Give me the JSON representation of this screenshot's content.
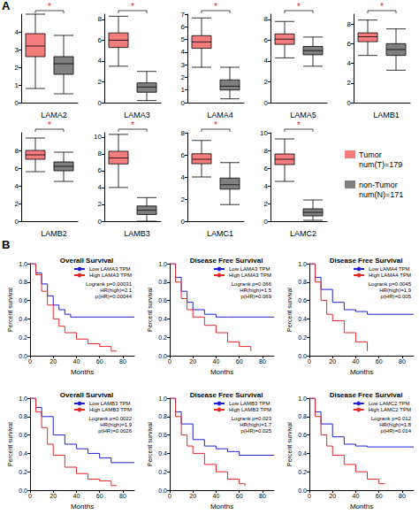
{
  "panel_labels": [
    "A",
    "B"
  ],
  "legend_notes": [
    "num(T)=179",
    "num(N)=171"
  ],
  "chart_data": [
    {
      "type": "boxplot",
      "title": "LAMA2",
      "annotation": "*",
      "categories": [
        "Tumor",
        "non-Tumor"
      ],
      "colors": [
        "#f47c7c",
        "#808080"
      ],
      "tick_labels": "y",
      "grid": false,
      "values": [
        [
          0.8,
          2.6,
          3.2,
          3.9,
          5.0
        ],
        [
          0.5,
          1.6,
          2.2,
          2.6,
          3.8
        ]
      ],
      "ylim": [
        0,
        5
      ],
      "yticks": [
        0,
        1,
        2,
        3,
        4
      ]
    },
    {
      "type": "boxplot",
      "title": "LAMA3",
      "annotation": "*",
      "categories": [
        "Tumor",
        "non-Tumor"
      ],
      "colors": [
        "#f47c7c",
        "#808080"
      ],
      "tick_labels": "y",
      "grid": false,
      "values": [
        [
          3.5,
          5.3,
          6.0,
          6.7,
          8.3
        ],
        [
          0.2,
          1.0,
          1.5,
          1.9,
          3.0
        ]
      ],
      "ylim": [
        0,
        8.5
      ],
      "yticks": [
        0,
        2,
        4,
        6,
        8
      ]
    },
    {
      "type": "boxplot",
      "title": "LAMA4",
      "annotation": "*",
      "categories": [
        "Tumor",
        "non-Tumor"
      ],
      "colors": [
        "#f47c7c",
        "#808080"
      ],
      "tick_labels": "y",
      "grid": false,
      "values": [
        [
          2.8,
          4.3,
          4.8,
          5.3,
          6.7
        ],
        [
          0.3,
          1.0,
          1.3,
          1.8,
          2.8
        ]
      ],
      "ylim": [
        0,
        7
      ],
      "yticks": [
        0,
        1,
        2,
        3,
        4,
        5,
        6,
        7
      ]
    },
    {
      "type": "boxplot",
      "title": "LAMA5",
      "annotation": "*",
      "categories": [
        "Tumor",
        "non-Tumor"
      ],
      "colors": [
        "#f47c7c",
        "#808080"
      ],
      "tick_labels": "y",
      "grid": false,
      "values": [
        [
          4.3,
          5.6,
          6.1,
          6.6,
          7.8
        ],
        [
          3.5,
          4.6,
          5.0,
          5.4,
          6.3
        ]
      ],
      "ylim": [
        0,
        8.5
      ],
      "yticks": [
        0,
        2,
        4,
        6,
        8
      ]
    },
    {
      "type": "boxplot",
      "title": "LAMB1",
      "annotation": "*",
      "categories": [
        "Tumor",
        "non-Tumor"
      ],
      "colors": [
        "#f47c7c",
        "#808080"
      ],
      "tick_labels": "y",
      "grid": false,
      "values": [
        [
          4.8,
          6.2,
          6.7,
          7.1,
          8.4
        ],
        [
          3.3,
          4.8,
          5.4,
          6.0,
          7.5
        ]
      ],
      "ylim": [
        0,
        9
      ],
      "yticks": [
        0,
        2,
        4,
        6,
        8
      ]
    },
    {
      "type": "boxplot",
      "title": "LAMB2",
      "annotation": "*",
      "categories": [
        "Tumor",
        "non-Tumor"
      ],
      "colors": [
        "#f47c7c",
        "#808080"
      ],
      "tick_labels": "y",
      "grid": false,
      "values": [
        [
          5.6,
          7.0,
          7.5,
          8.0,
          9.4
        ],
        [
          4.5,
          5.7,
          6.2,
          6.7,
          7.8
        ]
      ],
      "ylim": [
        0,
        10
      ],
      "yticks": [
        0,
        2,
        4,
        6,
        8
      ]
    },
    {
      "type": "boxplot",
      "title": "LAMB3",
      "annotation": "*",
      "categories": [
        "Tumor",
        "non-Tumor"
      ],
      "colors": [
        "#f47c7c",
        "#808080"
      ],
      "tick_labels": "y",
      "grid": false,
      "values": [
        [
          4.0,
          6.8,
          7.5,
          8.3,
          10.3
        ],
        [
          0,
          0.8,
          1.3,
          1.8,
          2.8
        ]
      ],
      "ylim": [
        0,
        10.5
      ],
      "yticks": [
        0,
        2,
        4,
        6,
        8,
        10
      ]
    },
    {
      "type": "boxplot",
      "title": "LAMC1",
      "annotation": "*",
      "categories": [
        "Tumor",
        "non-Tumor"
      ],
      "colors": [
        "#f47c7c",
        "#808080"
      ],
      "tick_labels": "y",
      "grid": false,
      "values": [
        [
          4.0,
          5.2,
          5.6,
          6.1,
          7.3
        ],
        [
          1.5,
          2.9,
          3.3,
          3.9,
          5.3
        ]
      ],
      "ylim": [
        0,
        8
      ],
      "yticks": [
        0,
        2,
        4,
        6,
        8
      ]
    },
    {
      "type": "boxplot",
      "title": "LAMC2",
      "annotation": "*",
      "categories": [
        "Tumor",
        "non-Tumor"
      ],
      "colors": [
        "#f47c7c",
        "#808080"
      ],
      "tick_labels": "y",
      "grid": false,
      "values": [
        [
          4.5,
          6.4,
          7.0,
          7.6,
          9.3
        ],
        [
          0.1,
          0.6,
          1.0,
          1.4,
          2.4
        ]
      ],
      "ylim": [
        0,
        10
      ],
      "yticks": [
        0,
        2,
        4,
        6,
        8,
        10
      ]
    },
    {
      "type": "step",
      "title": "Overall Survival",
      "xlabel": "Months",
      "ylabel": "Percent survival",
      "legend": "upper right",
      "grid": false,
      "xlim": [
        0,
        90
      ],
      "xticks": [
        0,
        20,
        40,
        60,
        80
      ],
      "ylim": [
        0,
        1
      ],
      "yticks": [
        {
          "value": 0,
          "label": "0.0"
        },
        {
          "value": 0.2,
          "label": "0.2"
        },
        {
          "value": 0.4,
          "label": "0.4"
        },
        {
          "value": 0.6,
          "label": "0.6"
        },
        {
          "value": 0.8,
          "label": "0.8"
        },
        {
          "value": 1,
          "label": "1.0"
        }
      ],
      "annotations": [
        "Logrank p=0.00031",
        "HR(high)=2.1",
        "p(HR)=0.00044"
      ],
      "series": [
        {
          "name": "Low LAMA3 TPM",
          "color": "#1f1fd6",
          "x": [
            0,
            5,
            10,
            15,
            20,
            25,
            30,
            35,
            45,
            90
          ],
          "values": [
            1,
            0.9,
            0.78,
            0.65,
            0.55,
            0.5,
            0.45,
            0.42,
            0.42,
            0.42
          ]
        },
        {
          "name": "High LAMA3 TPM",
          "color": "#e8262a",
          "x": [
            0,
            5,
            10,
            15,
            20,
            25,
            30,
            40,
            50,
            60,
            70,
            75
          ],
          "values": [
            1,
            0.88,
            0.7,
            0.55,
            0.4,
            0.32,
            0.25,
            0.18,
            0.13,
            0.1,
            0.05,
            0.05
          ]
        }
      ]
    },
    {
      "type": "step",
      "title": "Disease Free Survival",
      "xlabel": "Months",
      "ylabel": "Percent survival",
      "legend": "upper right",
      "grid": false,
      "xlim": [
        0,
        90
      ],
      "xticks": [
        0,
        20,
        40,
        60,
        80
      ],
      "ylim": [
        0,
        1
      ],
      "yticks": [
        {
          "value": 0,
          "label": "0.0"
        },
        {
          "value": 0.2,
          "label": "0.2"
        },
        {
          "value": 0.4,
          "label": "0.4"
        },
        {
          "value": 0.6,
          "label": "0.6"
        },
        {
          "value": 0.8,
          "label": "0.8"
        },
        {
          "value": 1,
          "label": "1.0"
        }
      ],
      "annotations": [
        "Logrank p=0.066",
        "HR(high)=1.5",
        "p(HR)=0.069"
      ],
      "series": [
        {
          "name": "Low LAMA3 TPM",
          "color": "#1f1fd6",
          "x": [
            0,
            5,
            10,
            15,
            20,
            30,
            40,
            50,
            90
          ],
          "values": [
            1,
            0.85,
            0.7,
            0.58,
            0.5,
            0.45,
            0.42,
            0.42,
            0.42
          ]
        },
        {
          "name": "High LAMA3 TPM",
          "color": "#e8262a",
          "x": [
            0,
            5,
            10,
            15,
            20,
            30,
            40,
            50,
            60,
            70
          ],
          "values": [
            1,
            0.8,
            0.62,
            0.5,
            0.42,
            0.33,
            0.25,
            0.15,
            0.1,
            0.05
          ]
        }
      ]
    },
    {
      "type": "step",
      "title": "Disease Free Survival",
      "xlabel": "Months",
      "ylabel": "Percent survival",
      "legend": "upper right",
      "grid": false,
      "xlim": [
        0,
        90
      ],
      "xticks": [
        0,
        20,
        40,
        60,
        80
      ],
      "ylim": [
        0,
        1
      ],
      "yticks": [
        {
          "value": 0,
          "label": "0.0"
        },
        {
          "value": 0.2,
          "label": "0.2"
        },
        {
          "value": 0.4,
          "label": "0.4"
        },
        {
          "value": 0.6,
          "label": "0.6"
        },
        {
          "value": 0.8,
          "label": "0.8"
        },
        {
          "value": 1,
          "label": "1.0"
        }
      ],
      "annotations": [
        "Logrank p=0.0045",
        "HR(high)=1.9",
        "p(HR)=0.005"
      ],
      "series": [
        {
          "name": "Low LAMA4 TPM",
          "color": "#1f1fd6",
          "x": [
            0,
            5,
            10,
            20,
            30,
            40,
            50,
            90
          ],
          "values": [
            1,
            0.85,
            0.72,
            0.58,
            0.5,
            0.48,
            0.45,
            0.45
          ]
        },
        {
          "name": "High LAMA4 TPM",
          "color": "#e8262a",
          "x": [
            0,
            5,
            10,
            15,
            20,
            30,
            40,
            50
          ],
          "values": [
            1,
            0.8,
            0.6,
            0.45,
            0.38,
            0.25,
            0.15,
            0.05
          ]
        }
      ]
    },
    {
      "type": "step",
      "title": "Overall Survival",
      "xlabel": "Months",
      "ylabel": "Percent survival",
      "legend": "upper right",
      "grid": false,
      "xlim": [
        0,
        90
      ],
      "xticks": [
        0,
        20,
        40,
        60,
        80
      ],
      "ylim": [
        0,
        1
      ],
      "yticks": [
        {
          "value": 0,
          "label": "0.0"
        },
        {
          "value": 0.2,
          "label": "0.2"
        },
        {
          "value": 0.4,
          "label": "0.4"
        },
        {
          "value": 0.6,
          "label": "0.6"
        },
        {
          "value": 0.8,
          "label": "0.8"
        },
        {
          "value": 1,
          "label": "1.0"
        }
      ],
      "annotations": [
        "Logrank p=0.0022",
        "HR(high)=1.9",
        "p(HR)=0.0026"
      ],
      "series": [
        {
          "name": "Low LAMB3 TPM",
          "color": "#1f1fd6",
          "x": [
            0,
            5,
            10,
            20,
            30,
            40,
            50,
            60,
            70,
            90
          ],
          "values": [
            1,
            0.9,
            0.8,
            0.6,
            0.5,
            0.45,
            0.4,
            0.35,
            0.3,
            0.3
          ]
        },
        {
          "name": "High LAMB3 TPM",
          "color": "#e8262a",
          "x": [
            0,
            5,
            10,
            15,
            20,
            30,
            40,
            50,
            60,
            70,
            75
          ],
          "values": [
            1,
            0.85,
            0.68,
            0.5,
            0.38,
            0.25,
            0.18,
            0.12,
            0.1,
            0.05,
            0.05
          ]
        }
      ]
    },
    {
      "type": "step",
      "title": "Disease Free Survival",
      "xlabel": "Months",
      "ylabel": "Percent survival",
      "legend": "upper right",
      "grid": false,
      "xlim": [
        0,
        90
      ],
      "xticks": [
        0,
        20,
        40,
        60,
        80
      ],
      "ylim": [
        0,
        1
      ],
      "yticks": [
        {
          "value": 0,
          "label": "0.0"
        },
        {
          "value": 0.2,
          "label": "0.2"
        },
        {
          "value": 0.4,
          "label": "0.4"
        },
        {
          "value": 0.6,
          "label": "0.6"
        },
        {
          "value": 0.8,
          "label": "0.8"
        },
        {
          "value": 1,
          "label": "1.0"
        }
      ],
      "annotations": [
        "Logrank p=0.023",
        "HR(high)=1.7",
        "p(HR)=0.025"
      ],
      "series": [
        {
          "name": "Low LAMB3 TPM",
          "color": "#1f1fd6",
          "x": [
            0,
            5,
            10,
            20,
            30,
            40,
            50,
            60,
            90
          ],
          "values": [
            1,
            0.85,
            0.72,
            0.55,
            0.48,
            0.45,
            0.42,
            0.38,
            0.38
          ]
        },
        {
          "name": "High LAMB3 TPM",
          "color": "#e8262a",
          "x": [
            0,
            5,
            10,
            15,
            20,
            30,
            40,
            50,
            60,
            65
          ],
          "values": [
            1,
            0.8,
            0.6,
            0.48,
            0.4,
            0.28,
            0.2,
            0.12,
            0.07,
            0.05
          ]
        }
      ]
    },
    {
      "type": "step",
      "title": "Disease Free Survival",
      "xlabel": "Months",
      "ylabel": "Percent survival",
      "legend": "upper right",
      "grid": false,
      "xlim": [
        0,
        90
      ],
      "xticks": [
        0,
        20,
        40,
        60,
        80
      ],
      "ylim": [
        0,
        1
      ],
      "yticks": [
        {
          "value": 0,
          "label": "0.0"
        },
        {
          "value": 0.2,
          "label": "0.2"
        },
        {
          "value": 0.4,
          "label": "0.4"
        },
        {
          "value": 0.6,
          "label": "0.6"
        },
        {
          "value": 0.8,
          "label": "0.8"
        },
        {
          "value": 1,
          "label": "1.0"
        }
      ],
      "annotations": [
        "Logrank p=0.012",
        "HR(high)=1.8",
        "p(HR)=0.014"
      ],
      "series": [
        {
          "name": "Low LAMC2 TPM",
          "color": "#1f1fd6",
          "x": [
            0,
            5,
            10,
            20,
            30,
            40,
            50,
            90
          ],
          "values": [
            1,
            0.85,
            0.72,
            0.58,
            0.5,
            0.48,
            0.47,
            0.47
          ]
        },
        {
          "name": "High LAMC2 TPM",
          "color": "#e8262a",
          "x": [
            0,
            5,
            10,
            15,
            20,
            30,
            40,
            50,
            60,
            65
          ],
          "values": [
            1,
            0.8,
            0.6,
            0.48,
            0.38,
            0.28,
            0.2,
            0.12,
            0.07,
            0.07
          ]
        }
      ]
    }
  ]
}
